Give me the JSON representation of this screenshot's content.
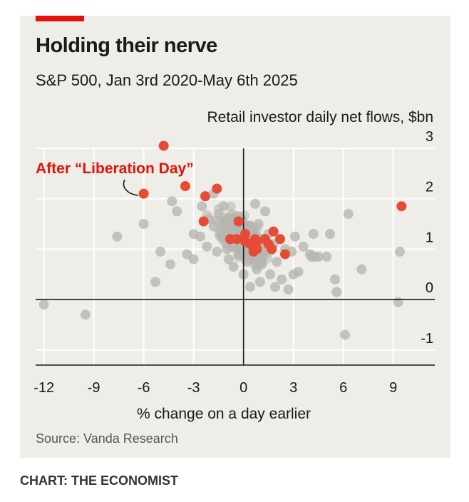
{
  "header": {
    "title": "Holding their nerve",
    "subtitle": "S&P 500, Jan 3rd 2020-May 6th 2025"
  },
  "footer": {
    "source": "Source: Vanda Research",
    "credit": "CHART: THE ECONOMIST"
  },
  "colors": {
    "accent": "#e3120b",
    "highlight_points": "#e64b35",
    "background_points": "#b7b7b1",
    "panel": "#eeede7"
  },
  "chart_data": {
    "type": "scatter",
    "ylabel": "Retail investor daily net flows, $bn",
    "xlabel": "% change on a day earlier",
    "xlim": [
      -12.5,
      11.5
    ],
    "ylim": [
      -1.3,
      3.0
    ],
    "xticks": [
      -12,
      -9,
      -6,
      -3,
      0,
      3,
      6,
      9
    ],
    "xtick_labels": [
      "-12",
      "-9",
      "-6",
      "-3",
      "0",
      "3",
      "6",
      "9"
    ],
    "yticks": [
      -1,
      0,
      1,
      2,
      3
    ],
    "ytick_labels": [
      "-1",
      "0",
      "1",
      "2",
      "3"
    ],
    "grid": true,
    "annotation": "After “Liberation Day”",
    "series": [
      {
        "points": [
          [
            -12.0,
            -0.1
          ],
          [
            -9.5,
            -0.3
          ],
          [
            -7.6,
            1.25
          ],
          [
            -6.0,
            1.5
          ],
          [
            -5.0,
            0.95
          ],
          [
            -4.4,
            0.7
          ],
          [
            -5.3,
            0.35
          ],
          [
            -4.3,
            1.95
          ],
          [
            -4.0,
            1.75
          ],
          [
            -3.0,
            1.3
          ],
          [
            -3.4,
            0.9
          ],
          [
            -3.0,
            0.8
          ],
          [
            -2.5,
            1.85
          ],
          [
            -2.1,
            1.6
          ],
          [
            -1.8,
            2.1
          ],
          [
            -1.5,
            1.7
          ],
          [
            -2.2,
            1.05
          ],
          [
            -1.2,
            1.85
          ],
          [
            -0.8,
            1.5
          ],
          [
            -0.4,
            1.3
          ],
          [
            -0.2,
            0.9
          ],
          [
            0.2,
            0.75
          ],
          [
            0.5,
            1.1
          ],
          [
            0.8,
            0.6
          ],
          [
            1.0,
            0.35
          ],
          [
            1.2,
            0.9
          ],
          [
            1.6,
            0.5
          ],
          [
            2.0,
            0.75
          ],
          [
            2.3,
            0.4
          ],
          [
            2.7,
            0.2
          ],
          [
            3.0,
            0.5
          ],
          [
            3.3,
            0.55
          ],
          [
            3.6,
            1.05
          ],
          [
            4.0,
            0.9
          ],
          [
            4.2,
            1.3
          ],
          [
            4.5,
            0.85
          ],
          [
            5.2,
            1.3
          ],
          [
            4.1,
            0.85
          ],
          [
            4.3,
            0.85
          ],
          [
            5.0,
            0.85
          ],
          [
            6.1,
            -0.7
          ],
          [
            6.3,
            1.7
          ],
          [
            5.5,
            0.4
          ],
          [
            5.6,
            0.15
          ],
          [
            7.1,
            0.6
          ],
          [
            9.4,
            0.95
          ],
          [
            9.3,
            -0.05
          ],
          [
            1.3,
            1.75
          ],
          [
            0.6,
            1.35
          ],
          [
            -0.5,
            1.05
          ],
          [
            0.0,
            0.5
          ],
          [
            0.4,
            0.25
          ],
          [
            -1.0,
            1.0
          ],
          [
            -1.3,
            1.25
          ],
          [
            1.8,
            1.1
          ],
          [
            2.5,
            1.0
          ],
          [
            -0.6,
            0.65
          ],
          [
            0.9,
            1.5
          ],
          [
            1.5,
            1.3
          ],
          [
            -1.8,
            1.45
          ],
          [
            -0.3,
            1.65
          ],
          [
            0.3,
            0.85
          ],
          [
            1.1,
            0.7
          ],
          [
            -0.9,
            0.8
          ],
          [
            0.7,
            1.9
          ],
          [
            -2.6,
            1.25
          ],
          [
            1.9,
            0.25
          ],
          [
            2.9,
            0.95
          ],
          [
            -1.6,
            0.95
          ],
          [
            3.1,
            1.25
          ]
        ]
      },
      {
        "points": [
          [
            -4.8,
            3.05
          ],
          [
            -6.0,
            2.1
          ],
          [
            -3.5,
            2.25
          ],
          [
            -2.3,
            2.05
          ],
          [
            -1.6,
            2.2
          ],
          [
            -2.4,
            1.55
          ],
          [
            -0.3,
            1.55
          ],
          [
            0.1,
            1.3
          ],
          [
            0.1,
            1.15
          ],
          [
            -0.8,
            1.2
          ],
          [
            -0.4,
            1.2
          ],
          [
            0.7,
            1.2
          ],
          [
            0.8,
            1.15
          ],
          [
            0.4,
            1.1
          ],
          [
            0.6,
            1.05
          ],
          [
            0.8,
            1.0
          ],
          [
            0.6,
            0.95
          ],
          [
            1.3,
            1.2
          ],
          [
            1.8,
            1.35
          ],
          [
            1.5,
            1.1
          ],
          [
            2.2,
            1.2
          ],
          [
            1.7,
            1.0
          ],
          [
            2.5,
            0.9
          ],
          [
            9.5,
            1.85
          ]
        ]
      }
    ]
  }
}
